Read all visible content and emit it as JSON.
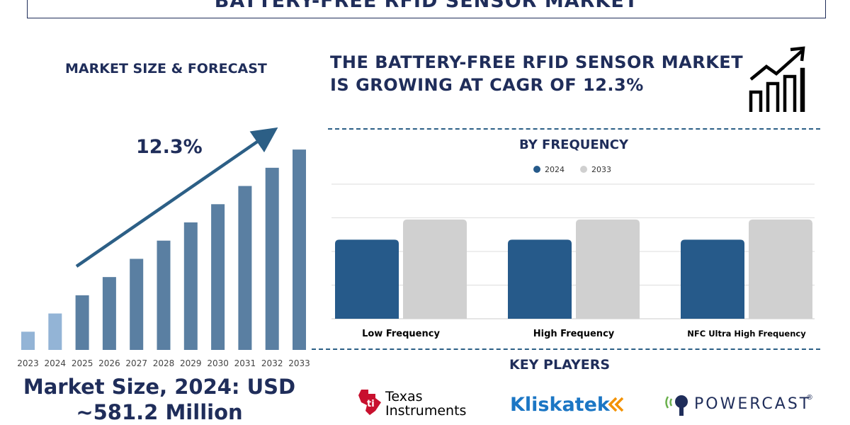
{
  "header": {
    "title": "BATTERY-FREE RFID SENSOR MARKET"
  },
  "left_panel": {
    "subtitle": "MARKET SIZE & FORECAST",
    "cagr_label": "12.3%",
    "market_size_line1": "Market Size, 2024: USD",
    "market_size_line2": "~581.2 Million"
  },
  "right_panel": {
    "headline_line1": "THE BATTERY-FREE RFID SENSOR MARKET",
    "headline_line2": "IS GROWING AT CAGR OF 12.3%",
    "frequency_title": "BY FREQUENCY",
    "key_players_title": "KEY PLAYERS",
    "icons": {
      "growth": "growth-chart-icon"
    }
  },
  "key_players": {
    "ti_line1": "Texas",
    "ti_line2": "Instruments",
    "kliskatek": "Kliskatek",
    "powercast": "POWERCAST",
    "powercast_mark": "®"
  },
  "colors": {
    "navy": "#1f2d5a",
    "bar_light": "#93b4d6",
    "bar_mid": "#5a7fa2",
    "bar_2024": "#265a8a",
    "bar_2033": "#d0d0d0",
    "ti_red": "#c8102e",
    "kli_blue": "#1b76c4",
    "kli_orange": "#f39200",
    "pc_green": "#6ab04c"
  },
  "chart_data": [
    {
      "type": "bar",
      "title": "MARKET SIZE & FORECAST",
      "categories": [
        "2023",
        "2024",
        "2025",
        "2026",
        "2027",
        "2028",
        "2029",
        "2030",
        "2031",
        "2032",
        "2033"
      ],
      "values": [
        1.0,
        2.0,
        3.0,
        4.0,
        5.0,
        6.0,
        7.0,
        8.0,
        9.0,
        10.0,
        11.0
      ],
      "annotation": "12.3%",
      "xlabel": "",
      "ylabel": "",
      "ylim": [
        0,
        11.2
      ],
      "grid": false
    },
    {
      "type": "bar",
      "title": "BY FREQUENCY",
      "categories": [
        "Low Frequency",
        "High Frequency",
        "NFC Ultra High Frequency"
      ],
      "series": [
        {
          "name": "2024",
          "values": [
            2.35,
            2.35,
            2.35
          ]
        },
        {
          "name": "2033",
          "values": [
            2.95,
            2.95,
            2.95
          ]
        }
      ],
      "ylim": [
        0,
        4.0
      ],
      "grid": true,
      "legend": "top"
    }
  ]
}
